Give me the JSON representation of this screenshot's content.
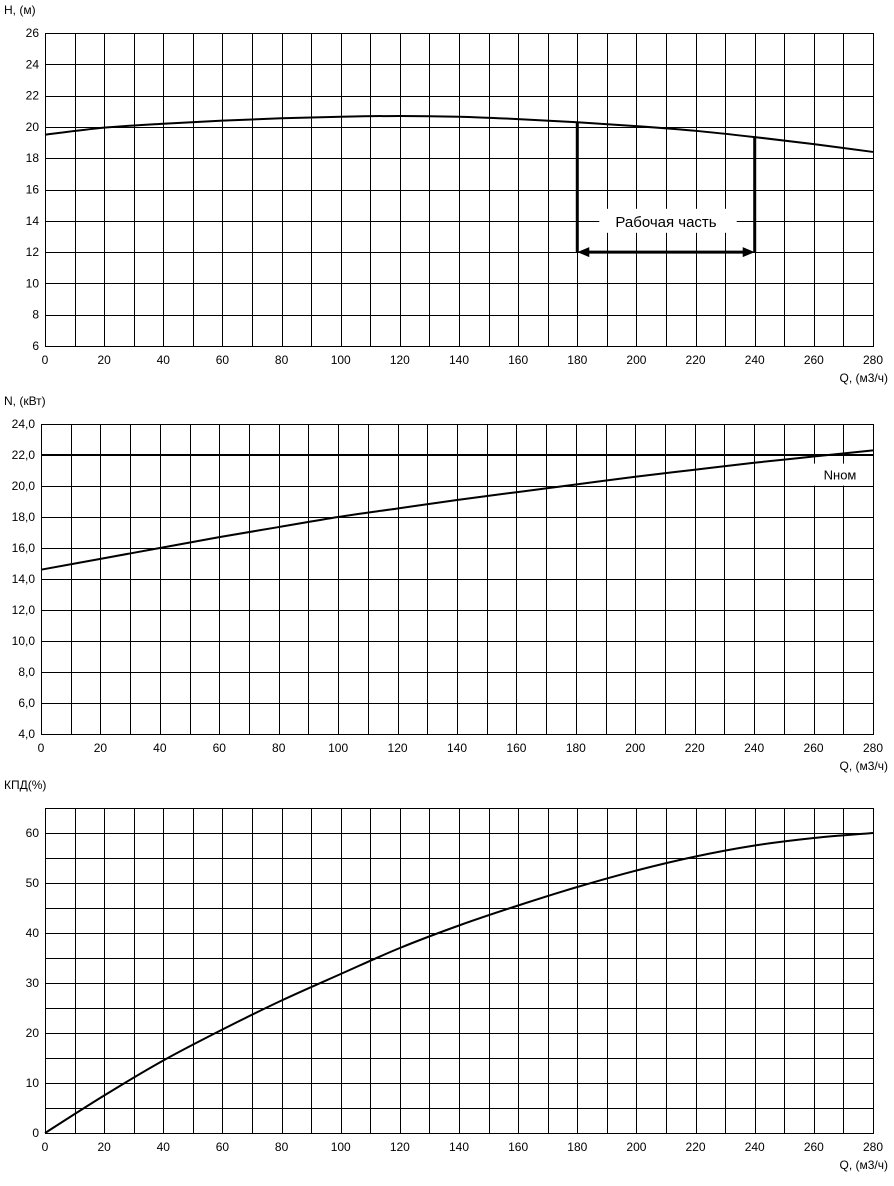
{
  "chart_data": [
    {
      "type": "line",
      "id": "head",
      "ylabel": "H, (м)",
      "xlabel": "Q, (м3/ч)",
      "xlim": [
        0,
        280
      ],
      "ylim": [
        6,
        26
      ],
      "xticks": [
        0,
        20,
        40,
        60,
        80,
        100,
        120,
        140,
        160,
        180,
        200,
        220,
        240,
        260,
        280
      ],
      "xtick_labels": [
        "0",
        "20",
        "40",
        "60",
        "80",
        "100",
        "120",
        "140",
        "160",
        "180",
        "200",
        "220",
        "240",
        "260",
        "280"
      ],
      "yticks": [
        6,
        8,
        10,
        12,
        14,
        16,
        18,
        20,
        22,
        24,
        26
      ],
      "ytick_labels": [
        "6",
        "8",
        "10",
        "12",
        "14",
        "16",
        "18",
        "20",
        "22",
        "24",
        "26"
      ],
      "grid": true,
      "series": [
        {
          "x": [
            0,
            20,
            40,
            60,
            80,
            100,
            120,
            140,
            160,
            180,
            200,
            220,
            240,
            260,
            280
          ],
          "y": [
            19.5,
            19.95,
            20.2,
            20.4,
            20.55,
            20.65,
            20.7,
            20.65,
            20.5,
            20.3,
            20.05,
            19.75,
            19.35,
            18.9,
            18.4
          ]
        }
      ],
      "annotation": {
        "text": "Рабочая часть",
        "x_range": [
          180,
          240
        ],
        "y_arrow": 12,
        "y_text": 14,
        "y_top": [
          20.3,
          19.35
        ]
      }
    },
    {
      "type": "line",
      "id": "power",
      "ylabel": "N, (кВт)",
      "xlabel": "Q, (м3/ч)",
      "xlim": [
        0,
        280
      ],
      "ylim": [
        4,
        24
      ],
      "xticks": [
        0,
        20,
        40,
        60,
        80,
        100,
        120,
        140,
        160,
        180,
        200,
        220,
        240,
        260,
        280
      ],
      "xtick_labels": [
        "0",
        "20",
        "40",
        "60",
        "80",
        "100",
        "120",
        "140",
        "160",
        "180",
        "200",
        "220",
        "240",
        "260",
        "280"
      ],
      "yticks": [
        4,
        6,
        8,
        10,
        12,
        14,
        16,
        18,
        20,
        22,
        24
      ],
      "ytick_labels": [
        "4,0",
        "6,0",
        "8,0",
        "10,0",
        "12,0",
        "14,0",
        "16,0",
        "18,0",
        "20,0",
        "22,0",
        "24,0"
      ],
      "grid": true,
      "series": [
        {
          "x": [
            0,
            20,
            40,
            60,
            80,
            100,
            120,
            140,
            160,
            180,
            200,
            220,
            240,
            260,
            280
          ],
          "y": [
            14.6,
            15.3,
            16.0,
            16.7,
            17.35,
            18.0,
            18.55,
            19.1,
            19.6,
            20.1,
            20.6,
            21.05,
            21.5,
            21.9,
            22.3
          ]
        }
      ],
      "hline": {
        "y": 22,
        "label": "Nном"
      }
    },
    {
      "type": "line",
      "id": "efficiency",
      "ylabel": "КПД(%)",
      "xlabel": "Q, (м3/ч)",
      "xlim": [
        0,
        280
      ],
      "ylim": [
        0,
        65
      ],
      "xticks": [
        0,
        20,
        40,
        60,
        80,
        100,
        120,
        140,
        160,
        180,
        200,
        220,
        240,
        260,
        280
      ],
      "xtick_labels": [
        "0",
        "20",
        "40",
        "60",
        "80",
        "100",
        "120",
        "140",
        "160",
        "180",
        "200",
        "220",
        "240",
        "260",
        "280"
      ],
      "yticks": [
        0,
        10,
        20,
        30,
        40,
        50,
        60
      ],
      "ytick_labels": [
        "0",
        "10",
        "20",
        "30",
        "40",
        "50",
        "60"
      ],
      "grid": true,
      "series": [
        {
          "x": [
            0,
            20,
            40,
            60,
            80,
            100,
            120,
            140,
            160,
            180,
            200,
            220,
            240,
            260,
            280
          ],
          "y": [
            0,
            7.5,
            14.5,
            20.7,
            26.5,
            31.8,
            37.0,
            41.5,
            45.5,
            49.2,
            52.5,
            55.3,
            57.5,
            59.0,
            60.0
          ]
        }
      ]
    }
  ]
}
